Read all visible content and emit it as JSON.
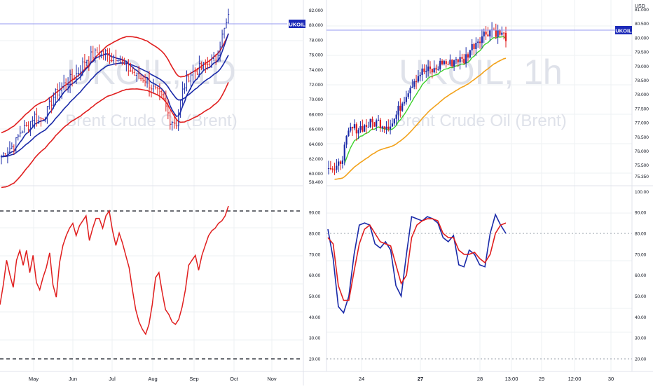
{
  "colors": {
    "background": "#ffffff",
    "grid": "#eef0f3",
    "divider": "#e0e3eb",
    "axis_text": "#131722",
    "watermark": "#dfe2ea",
    "price_line": "#9598f0",
    "tag_bg": "#1c2ab8",
    "bb_outer": "#e01e1e",
    "bb_mid": "#1a2aa8",
    "bar_up": "#1a2aa8",
    "bar_down": "#e01e1e",
    "ema_fast": "#3bd12a",
    "ema_slow": "#f2a21b",
    "rsi": "#e01e1e",
    "stoch_k": "#1a2aa8",
    "stoch_d": "#e01e1e",
    "level_line": "#131722"
  },
  "symbol_tag": "UKOIL",
  "left_panel": {
    "watermark_symbol": "UKOIL, 1D",
    "watermark_name": "Brent Crude Oil (Brent)",
    "x_labels": [
      "May",
      "Jun",
      "Jul",
      "Aug",
      "Sep",
      "Oct",
      "Nov"
    ]
  },
  "right_panel": {
    "watermark_symbol": "UKOIL, 1h",
    "watermark_name": "Brent Crude Oil (Brent)",
    "currency": "USD",
    "x_labels": [
      "24",
      "27",
      "28",
      "13:00",
      "29",
      "12:00",
      "30"
    ],
    "left_price_ticks": [
      "82.000",
      "80.000",
      "78.000",
      "76.000",
      "74.000",
      "72.000",
      "70.000",
      "68.000",
      "66.000",
      "64.000",
      "62.000",
      "60.000",
      "58.400"
    ],
    "right_price_ticks": [
      "81.000",
      "80.500",
      "80.000",
      "79.500",
      "79.000",
      "78.500",
      "78.000",
      "77.500",
      "77.000",
      "76.500",
      "76.000",
      "75.500",
      "75.350"
    ],
    "osc_left_ticks": [
      "90.00",
      "80.00",
      "70.00",
      "60.00",
      "50.00",
      "40.00",
      "30.00",
      "20.00"
    ],
    "osc_right_ticks": [
      "100.00",
      "90.00",
      "80.00",
      "70.00",
      "60.00",
      "50.00",
      "40.00",
      "30.00",
      "20.00"
    ]
  },
  "chart_data": [
    {
      "type": "candlestick",
      "panel": "left-top",
      "timeframe": "1D",
      "instrument": "UKOIL",
      "price_range": [
        58.4,
        82.0
      ],
      "overlays": [
        "Bollinger upper/lower (red)",
        "two moving averages (blue)"
      ],
      "close_path": [
        62,
        63,
        63.5,
        65.5,
        66,
        67.5,
        67,
        68,
        70,
        71,
        72,
        72.5,
        73.5,
        75,
        75.5,
        76,
        75.8,
        75.2,
        75.5,
        74,
        73.5,
        72.5,
        72.5,
        71.5,
        70.5,
        69.5,
        67,
        66.5,
        71,
        73,
        73.5,
        74,
        74.5,
        75,
        78,
        80.5
      ],
      "last_price_line": 80.3
    },
    {
      "type": "line",
      "panel": "left-bottom",
      "indicator": "RSI",
      "levels": [
        20,
        80
      ],
      "x_labels": [
        "May",
        "Jun",
        "Jul",
        "Aug",
        "Sep",
        "Oct",
        "Nov"
      ],
      "values": [
        42,
        50,
        60,
        54,
        49,
        60,
        64,
        58,
        64,
        55,
        62,
        51,
        48,
        53,
        57,
        63,
        50,
        45,
        59,
        66,
        70,
        73,
        75,
        70,
        74,
        76,
        78,
        68,
        73,
        77,
        77,
        73,
        78,
        80,
        72,
        66,
        71,
        67,
        62,
        57,
        48,
        40,
        35,
        32,
        30,
        34,
        42,
        53,
        55,
        47,
        40,
        38,
        35,
        34,
        36,
        41,
        48,
        58,
        60,
        62,
        56,
        62,
        66,
        70,
        72,
        73,
        75,
        76,
        78,
        82
      ]
    },
    {
      "type": "candlestick",
      "panel": "right-top",
      "timeframe": "1h",
      "instrument": "UKOIL",
      "price_range": [
        75.35,
        81.0
      ],
      "overlays": [
        "EMA fast (green)",
        "EMA slow (orange)"
      ],
      "close_path": [
        75.9,
        75.6,
        76.2,
        77.0,
        77.05,
        77.1,
        77.2,
        77.25,
        77.15,
        77.2,
        77.7,
        78.2,
        78.6,
        78.85,
        78.9,
        78.9,
        79.2,
        79.1,
        79.3,
        79.2,
        79.6,
        79.9,
        80.1,
        80.25,
        80.1,
        80.0
      ],
      "last_price_line": 80.0
    },
    {
      "type": "line",
      "panel": "right-bottom",
      "indicator": "Stochastic",
      "levels": [
        20,
        80
      ],
      "x_labels": [
        "24",
        "27",
        "28",
        "13:00",
        "29",
        "12:00",
        "30"
      ],
      "series": [
        {
          "values": [
            82,
            68,
            45,
            42,
            50,
            70,
            84,
            85,
            84,
            75,
            73,
            76,
            72,
            55,
            50,
            70,
            88,
            87,
            86,
            88,
            87,
            85,
            78,
            76,
            79,
            65,
            64,
            72,
            70,
            65,
            64,
            80,
            89,
            84,
            80
          ]
        },
        {
          "values": [
            78,
            75,
            55,
            48,
            48,
            62,
            75,
            82,
            84,
            80,
            76,
            75,
            74,
            65,
            56,
            60,
            78,
            84,
            86,
            87,
            87,
            86,
            80,
            78,
            78,
            72,
            70,
            70,
            71,
            68,
            66,
            70,
            80,
            84,
            85
          ]
        }
      ]
    }
  ]
}
